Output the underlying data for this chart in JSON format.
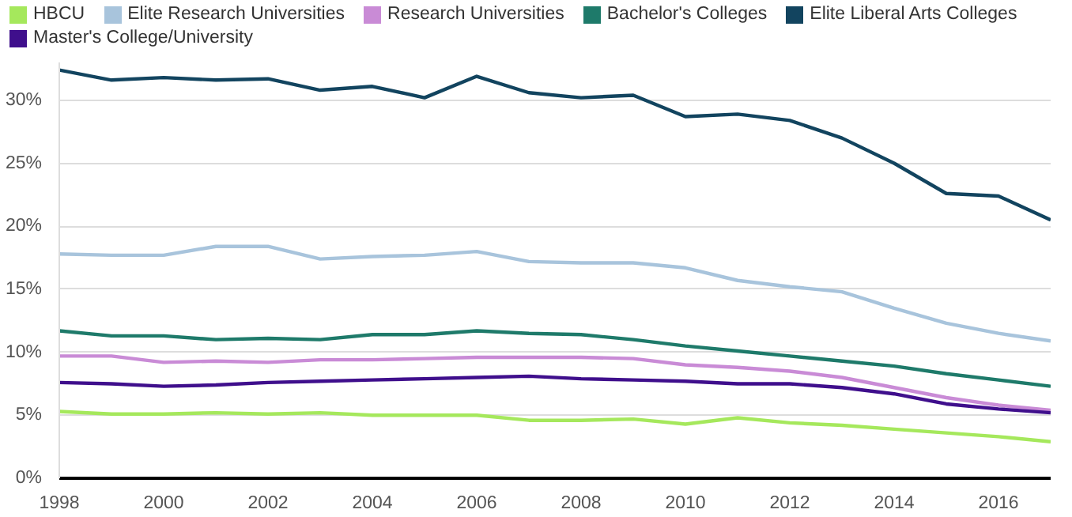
{
  "chart_data": {
    "type": "line",
    "x": [
      1998,
      1999,
      2000,
      2001,
      2002,
      2003,
      2004,
      2005,
      2006,
      2007,
      2008,
      2009,
      2010,
      2011,
      2012,
      2013,
      2014,
      2015,
      2016,
      2017
    ],
    "series": [
      {
        "name": "HBCU",
        "color": "#a5e85c",
        "values": [
          5.3,
          5.1,
          5.1,
          5.2,
          5.1,
          5.2,
          5.0,
          5.0,
          5.0,
          4.6,
          4.6,
          4.7,
          4.3,
          4.8,
          4.4,
          4.2,
          3.9,
          3.6,
          3.3,
          2.9
        ]
      },
      {
        "name": "Elite Research Universities",
        "color": "#a8c4dc",
        "values": [
          17.8,
          17.7,
          17.7,
          18.4,
          18.4,
          17.4,
          17.6,
          17.7,
          18.0,
          17.2,
          17.1,
          17.1,
          16.7,
          15.7,
          15.2,
          14.8,
          13.5,
          12.3,
          11.5,
          10.9
        ]
      },
      {
        "name": "Research Universities",
        "color": "#c98bd6",
        "values": [
          9.7,
          9.7,
          9.2,
          9.3,
          9.2,
          9.4,
          9.4,
          9.5,
          9.6,
          9.6,
          9.6,
          9.5,
          9.0,
          8.8,
          8.5,
          8.0,
          7.2,
          6.4,
          5.8,
          5.4
        ]
      },
      {
        "name": "Bachelor's Colleges",
        "color": "#1e7a6a",
        "values": [
          11.7,
          11.3,
          11.3,
          11.0,
          11.1,
          11.0,
          11.4,
          11.4,
          11.7,
          11.5,
          11.4,
          11.0,
          10.5,
          10.1,
          9.7,
          9.3,
          8.9,
          8.3,
          7.8,
          7.3
        ]
      },
      {
        "name": "Elite Liberal Arts Colleges",
        "color": "#12445f",
        "values": [
          32.4,
          31.6,
          31.8,
          31.6,
          31.7,
          30.8,
          31.1,
          30.2,
          31.9,
          30.6,
          30.2,
          30.4,
          28.7,
          28.9,
          28.4,
          27.0,
          25.0,
          22.6,
          22.4,
          20.5
        ]
      },
      {
        "name": "Master's College/University",
        "color": "#3f0f8c",
        "values": [
          7.6,
          7.5,
          7.3,
          7.4,
          7.6,
          7.7,
          7.8,
          7.9,
          8.0,
          8.1,
          7.9,
          7.8,
          7.7,
          7.5,
          7.5,
          7.2,
          6.7,
          5.9,
          5.5,
          5.2
        ]
      }
    ],
    "xlim": [
      1998,
      2017
    ],
    "xticks": [
      1998,
      2000,
      2002,
      2004,
      2006,
      2008,
      2010,
      2012,
      2014,
      2016
    ],
    "ylim": [
      0,
      33
    ],
    "yticks": [
      {
        "value": 0,
        "label": "0%"
      },
      {
        "value": 5,
        "label": "5%"
      },
      {
        "value": 10,
        "label": "10%"
      },
      {
        "value": 15,
        "label": "15%"
      },
      {
        "value": 20,
        "label": "20%"
      },
      {
        "value": 25,
        "label": "25%"
      },
      {
        "value": 30,
        "label": "30%"
      }
    ],
    "grid": "y",
    "legend": "top",
    "marker": "none",
    "line_style": "solid"
  }
}
